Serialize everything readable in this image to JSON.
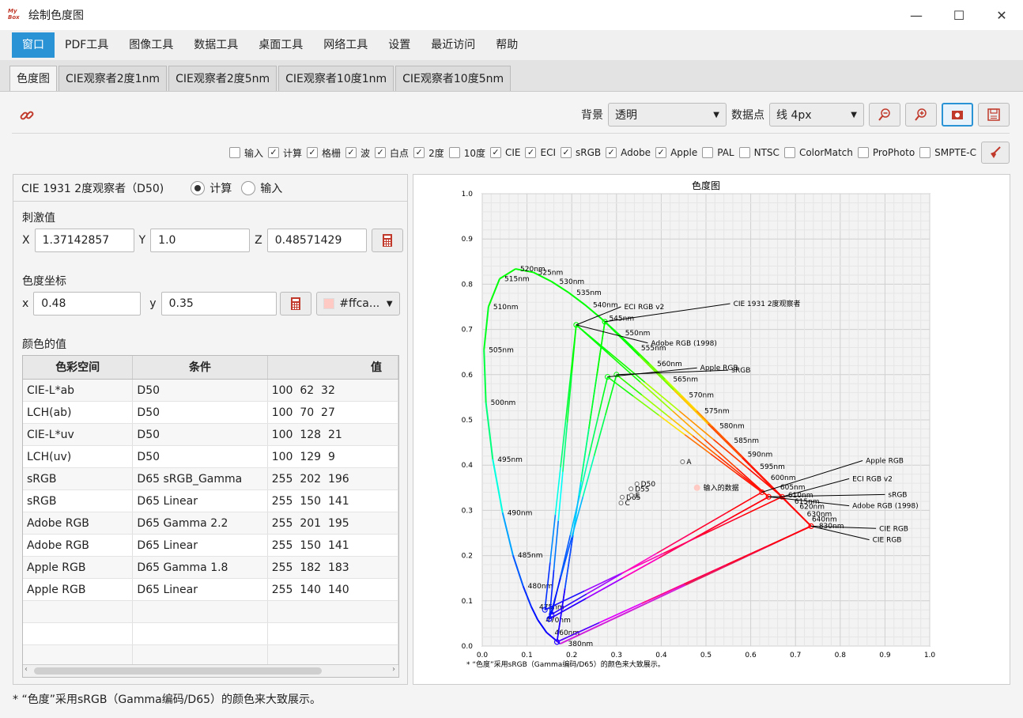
{
  "window": {
    "title": "绘制色度图",
    "icon_text": "My Box",
    "controls": [
      "—",
      "☐",
      "✕"
    ]
  },
  "menu": [
    "窗口",
    "PDF工具",
    "图像工具",
    "数据工具",
    "桌面工具",
    "网络工具",
    "设置",
    "最近访问",
    "帮助"
  ],
  "tabs": [
    "色度图",
    "CIE观察者2度1nm",
    "CIE观察者2度5nm",
    "CIE观察者10度1nm",
    "CIE观察者10度5nm"
  ],
  "toolbar": {
    "bg_label": "背景",
    "bg_value": "透明",
    "points_label": "数据点",
    "points_value": "线 4px"
  },
  "checks": [
    {
      "label": "输入",
      "on": false
    },
    {
      "label": "计算",
      "on": true
    },
    {
      "label": "格栅",
      "on": true
    },
    {
      "label": "波",
      "on": true
    },
    {
      "label": "白点",
      "on": true
    },
    {
      "label": "2度",
      "on": true
    },
    {
      "label": "10度",
      "on": false
    },
    {
      "label": "CIE",
      "on": true
    },
    {
      "label": "ECI",
      "on": true
    },
    {
      "label": "sRGB",
      "on": true
    },
    {
      "label": "Adobe",
      "on": true
    },
    {
      "label": "Apple",
      "on": true
    },
    {
      "label": "PAL",
      "on": false
    },
    {
      "label": "NTSC",
      "on": false
    },
    {
      "label": "ColorMatch",
      "on": false
    },
    {
      "label": "ProPhoto",
      "on": false
    },
    {
      "label": "SMPTE-C",
      "on": false
    }
  ],
  "panel": {
    "observer": "CIE 1931 2度观察者（D50)",
    "radio_calc": "计算",
    "radio_input": "输入",
    "tristimulus_label": "刺激值",
    "X_label": "X",
    "X": "1.37142857",
    "Y_label": "Y",
    "Y": "1.0",
    "Z_label": "Z",
    "Z": "0.48571429",
    "chroma_label": "色度坐标",
    "x_label": "x",
    "x": "0.48",
    "y_label": "y",
    "y": "0.35",
    "color_hex": "#ffca...",
    "color_swatch": "#ffcac4",
    "values_label": "颜色的值"
  },
  "table": {
    "headers": [
      "色彩空间",
      "条件",
      "值"
    ],
    "rows": [
      [
        "CIE-L*ab",
        "D50",
        "100  62  32"
      ],
      [
        "LCH(ab)",
        "D50",
        "100  70  27"
      ],
      [
        "CIE-L*uv",
        "D50",
        "100  128  21"
      ],
      [
        "LCH(uv)",
        "D50",
        "100  129  9"
      ],
      [
        "sRGB",
        "D65 sRGB_Gamma",
        "255  202  196"
      ],
      [
        "sRGB",
        "D65 Linear",
        "255  150  141"
      ],
      [
        "Adobe RGB",
        "D65 Gamma 2.2",
        "255  201  195"
      ],
      [
        "Adobe RGB",
        "D65 Linear",
        "255  150  141"
      ],
      [
        "Apple RGB",
        "D65 Gamma 1.8",
        "255  182  183"
      ],
      [
        "Apple RGB",
        "D65 Linear",
        "255  140  140"
      ],
      [
        "",
        "",
        ""
      ],
      [
        "",
        "",
        ""
      ],
      [
        "",
        "",
        ""
      ]
    ]
  },
  "footer": "* “色度”采用sRGB（Gamma编码/D65）的颜色来大致展示。",
  "chart_data": {
    "type": "scatter",
    "title": "色度图",
    "note": "* “色度”采用sRGB（Gamma编码/D65）的颜色来大致展示。",
    "xlim": [
      0,
      1
    ],
    "ylim": [
      0,
      1
    ],
    "xticks": [
      "0.0",
      "0.1",
      "0.2",
      "0.3",
      "0.4",
      "0.5",
      "0.6",
      "0.7",
      "0.8",
      "0.9",
      "1.0"
    ],
    "yticks": [
      "0.0",
      "0.1",
      "0.2",
      "0.3",
      "0.4",
      "0.5",
      "0.6",
      "0.7",
      "0.8",
      "0.9",
      "1.0"
    ],
    "grid": true,
    "locus": [
      {
        "nm": "380nm",
        "x": 0.1741,
        "y": 0.005
      },
      {
        "nm": "460nm",
        "x": 0.144,
        "y": 0.0297
      },
      {
        "nm": "470nm",
        "x": 0.1241,
        "y": 0.0578
      },
      {
        "nm": "475nm",
        "x": 0.1096,
        "y": 0.0868
      },
      {
        "nm": "480nm",
        "x": 0.0913,
        "y": 0.1327
      },
      {
        "nm": "485nm",
        "x": 0.0687,
        "y": 0.2007
      },
      {
        "nm": "490nm",
        "x": 0.0454,
        "y": 0.295
      },
      {
        "nm": "495nm",
        "x": 0.0235,
        "y": 0.4127
      },
      {
        "nm": "500nm",
        "x": 0.0082,
        "y": 0.5384
      },
      {
        "nm": "505nm",
        "x": 0.0039,
        "y": 0.6548
      },
      {
        "nm": "510nm",
        "x": 0.0139,
        "y": 0.7502
      },
      {
        "nm": "515nm",
        "x": 0.0389,
        "y": 0.812
      },
      {
        "nm": "520nm",
        "x": 0.0743,
        "y": 0.8338
      },
      {
        "nm": "525nm",
        "x": 0.1142,
        "y": 0.8262
      },
      {
        "nm": "530nm",
        "x": 0.1547,
        "y": 0.8059
      },
      {
        "nm": "535nm",
        "x": 0.1929,
        "y": 0.7816
      },
      {
        "nm": "540nm",
        "x": 0.2296,
        "y": 0.7543
      },
      {
        "nm": "545nm",
        "x": 0.2658,
        "y": 0.7243
      },
      {
        "nm": "550nm",
        "x": 0.3016,
        "y": 0.6923
      },
      {
        "nm": "555nm",
        "x": 0.3373,
        "y": 0.6589
      },
      {
        "nm": "560nm",
        "x": 0.3731,
        "y": 0.6245
      },
      {
        "nm": "565nm",
        "x": 0.4087,
        "y": 0.5896
      },
      {
        "nm": "570nm",
        "x": 0.4441,
        "y": 0.5547
      },
      {
        "nm": "575nm",
        "x": 0.4788,
        "y": 0.5202
      },
      {
        "nm": "580nm",
        "x": 0.5125,
        "y": 0.4866
      },
      {
        "nm": "585nm",
        "x": 0.5448,
        "y": 0.4544
      },
      {
        "nm": "590nm",
        "x": 0.5752,
        "y": 0.4242
      },
      {
        "nm": "595nm",
        "x": 0.6029,
        "y": 0.3965
      },
      {
        "nm": "600nm",
        "x": 0.627,
        "y": 0.3725
      },
      {
        "nm": "605nm",
        "x": 0.6482,
        "y": 0.3514
      },
      {
        "nm": "610nm",
        "x": 0.6658,
        "y": 0.334
      },
      {
        "nm": "615nm",
        "x": 0.6801,
        "y": 0.3197
      },
      {
        "nm": "620nm",
        "x": 0.6915,
        "y": 0.3083
      },
      {
        "nm": "630nm",
        "x": 0.7079,
        "y": 0.292
      },
      {
        "nm": "640nm",
        "x": 0.719,
        "y": 0.2809
      },
      {
        "nm": "830nm",
        "x": 0.7347,
        "y": 0.2653
      }
    ],
    "gamuts": [
      {
        "name": "CIE 1931 2度观察者",
        "pts": [
          [
            0.735,
            0.265
          ],
          [
            0.274,
            0.717
          ],
          [
            0.167,
            0.009
          ]
        ]
      },
      {
        "name": "CIE RGB",
        "pts": [
          [
            0.735,
            0.265
          ],
          [
            0.274,
            0.717
          ],
          [
            0.167,
            0.009
          ]
        ]
      },
      {
        "name": "ECI RGB v2",
        "pts": [
          [
            0.67,
            0.33
          ],
          [
            0.21,
            0.71
          ],
          [
            0.14,
            0.08
          ]
        ]
      },
      {
        "name": "Adobe RGB (1998)",
        "pts": [
          [
            0.64,
            0.33
          ],
          [
            0.21,
            0.71
          ],
          [
            0.15,
            0.06
          ]
        ]
      },
      {
        "name": "Apple RGB",
        "pts": [
          [
            0.625,
            0.34
          ],
          [
            0.28,
            0.595
          ],
          [
            0.155,
            0.07
          ]
        ]
      },
      {
        "name": "sRGB",
        "pts": [
          [
            0.64,
            0.33
          ],
          [
            0.3,
            0.6
          ],
          [
            0.15,
            0.06
          ]
        ]
      }
    ],
    "whitepoints": [
      {
        "name": "A",
        "x": 0.4476,
        "y": 0.4074
      },
      {
        "name": "D55",
        "x": 0.3324,
        "y": 0.3474
      },
      {
        "name": "D50",
        "x": 0.3457,
        "y": 0.3585
      },
      {
        "name": "D65",
        "x": 0.3127,
        "y": 0.329
      },
      {
        "name": "E",
        "x": 0.3333,
        "y": 0.3333
      },
      {
        "name": "C",
        "x": 0.3101,
        "y": 0.3162
      }
    ],
    "input_point": {
      "label": "输入的数据",
      "x": 0.48,
      "y": 0.35,
      "color": "#ffcac4"
    }
  }
}
